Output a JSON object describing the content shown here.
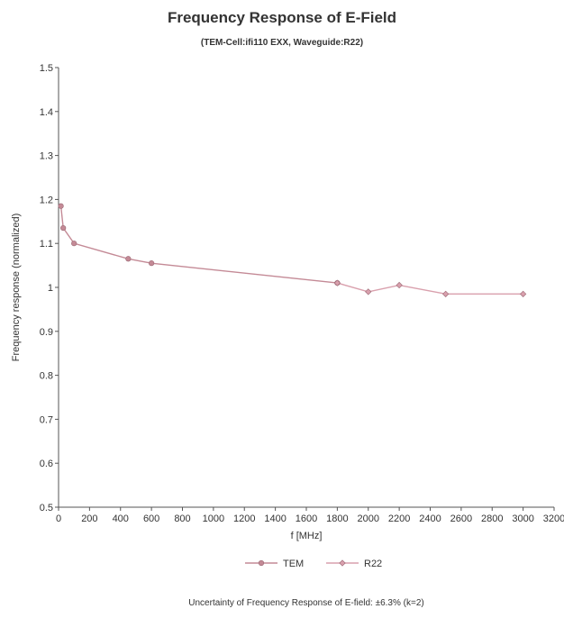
{
  "chart_data": {
    "type": "line",
    "title": "Frequency Response of E-Field",
    "subtitle": "(TEM-Cell:ifi110 EXX, Waveguide:R22)",
    "xlabel": "f [MHz]",
    "ylabel": "Frequency response (normalized)",
    "xlim": [
      0,
      3200
    ],
    "ylim": [
      0.5,
      1.5
    ],
    "xticks": [
      "0",
      "200",
      "400",
      "600",
      "800",
      "1000",
      "1200",
      "1400",
      "1600",
      "1800",
      "2000",
      "2200",
      "2400",
      "2600",
      "2800",
      "3000",
      "3200"
    ],
    "yticks": [
      "0.5",
      "0.6",
      "0.7",
      "0.8",
      "0.9",
      "1",
      "1.1",
      "1.2",
      "1.3",
      "1.4",
      "1.5"
    ],
    "grid": false,
    "legend_position": "bottom",
    "series": [
      {
        "name": "TEM",
        "color": "#c48a96",
        "x": [
          15,
          30,
          100,
          450,
          600,
          1800
        ],
        "y": [
          1.185,
          1.135,
          1.1,
          1.065,
          1.055,
          1.01
        ]
      },
      {
        "name": "R22",
        "color": "#d9a0ad",
        "x": [
          1800,
          2000,
          2200,
          2500,
          3000
        ],
        "y": [
          1.01,
          0.99,
          1.005,
          0.985,
          0.985
        ]
      }
    ],
    "footnote": "Uncertainty of Frequency Response of E-field: ±6.3% (k=2)"
  }
}
